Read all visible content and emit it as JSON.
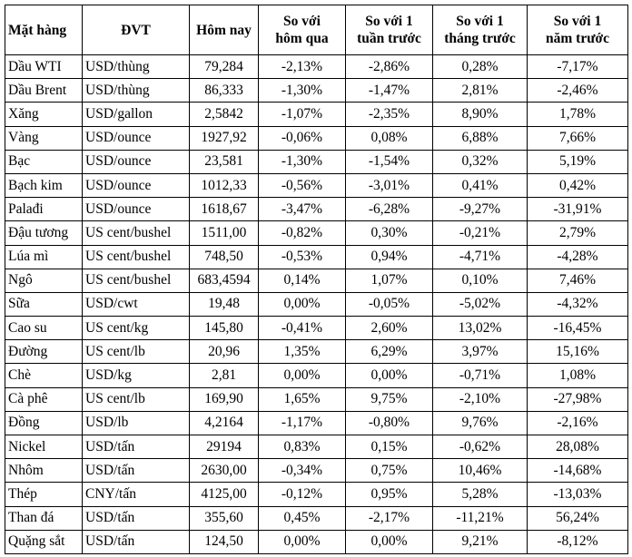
{
  "table": {
    "header": [
      "Mặt hàng",
      "ĐVT",
      "Hôm nay",
      "So với\nhôm qua",
      "So với 1\ntuần trước",
      "So với 1\ntháng trước",
      "So với 1\nnăm trước"
    ],
    "rows": [
      [
        "Dầu WTI",
        "USD/thùng",
        "79,284",
        "-2,13%",
        "-2,86%",
        "0,28%",
        "-7,17%"
      ],
      [
        "Dầu Brent",
        "USD/thùng",
        "86,333",
        "-1,30%",
        "-1,47%",
        "2,81%",
        "-2,46%"
      ],
      [
        "Xăng",
        "USD/gallon",
        "2,5842",
        "-1,07%",
        "-2,35%",
        "8,90%",
        "1,78%"
      ],
      [
        "Vàng",
        "USD/ounce",
        "1927,92",
        "-0,06%",
        "0,08%",
        "6,88%",
        "7,66%"
      ],
      [
        "Bạc",
        "USD/ounce",
        "23,581",
        "-1,30%",
        "-1,54%",
        "0,32%",
        "5,19%"
      ],
      [
        "Bạch kim",
        "USD/ounce",
        "1012,33",
        "-0,56%",
        "-3,01%",
        "0,41%",
        "0,42%"
      ],
      [
        "Palađi",
        "USD/ounce",
        "1618,67",
        "-3,47%",
        "-6,28%",
        "-9,27%",
        "-31,91%"
      ],
      [
        "Đậu tương",
        "US cent/bushel",
        "1511,00",
        "-0,82%",
        "0,30%",
        "-0,21%",
        "2,79%"
      ],
      [
        "Lúa mì",
        "US cent/bushel",
        "748,50",
        "-0,53%",
        "0,94%",
        "-4,71%",
        "-4,28%"
      ],
      [
        "Ngô",
        "US cent/bushel",
        "683,4594",
        "0,14%",
        "1,07%",
        "0,10%",
        "7,46%"
      ],
      [
        "Sữa",
        "USD/cwt",
        "19,48",
        "0,00%",
        "-0,05%",
        "-5,02%",
        "-4,32%"
      ],
      [
        "Cao su",
        "US cent/kg",
        "145,80",
        "-0,41%",
        "2,60%",
        "13,02%",
        "-16,45%"
      ],
      [
        "Đường",
        "US cent/lb",
        "20,96",
        "1,35%",
        "6,29%",
        "3,97%",
        "15,16%"
      ],
      [
        "Chè",
        "USD/kg",
        "2,81",
        "0,00%",
        "0,00%",
        "-0,71%",
        "1,08%"
      ],
      [
        "Cà phê",
        "US cent/lb",
        "169,90",
        "1,65%",
        "9,75%",
        "-2,10%",
        "-27,98%"
      ],
      [
        "Đồng",
        "USD/lb",
        "4,2164",
        "-1,17%",
        "-0,80%",
        "9,76%",
        "-2,16%"
      ],
      [
        "Nickel",
        "USD/tấn",
        "29194",
        "0,83%",
        "0,15%",
        "-0,62%",
        "28,08%"
      ],
      [
        "Nhôm",
        "USD/tấn",
        "2630,00",
        "-0,34%",
        "0,75%",
        "10,46%",
        "-14,68%"
      ],
      [
        "Thép",
        "CNY/tấn",
        "4125,00",
        "-0,12%",
        "0,95%",
        "5,28%",
        "-13,03%"
      ],
      [
        "Than đá",
        "USD/tấn",
        "355,60",
        "0,45%",
        "-2,17%",
        "-11,21%",
        "56,24%"
      ],
      [
        "Quặng sắt",
        "USD/tấn",
        "124,50",
        "0,00%",
        "0,00%",
        "9,21%",
        "-8,12%"
      ]
    ]
  }
}
